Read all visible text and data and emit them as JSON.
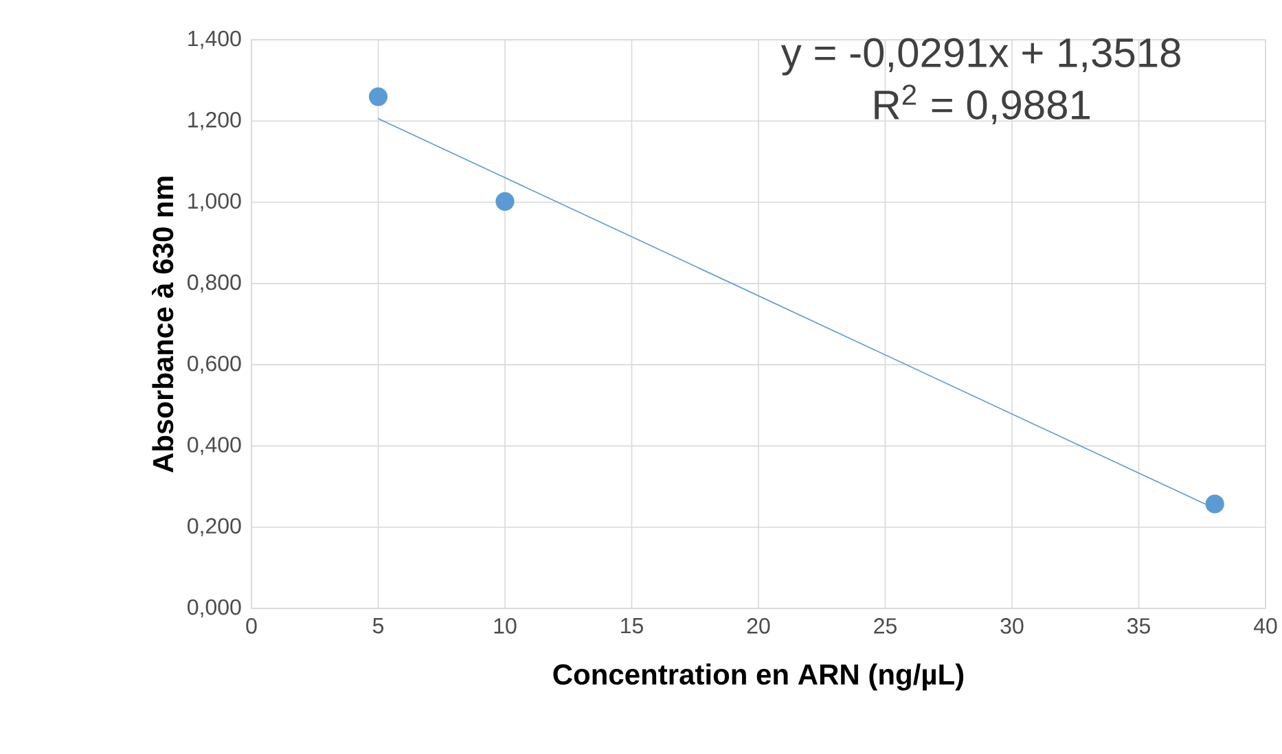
{
  "chart_data": {
    "type": "scatter",
    "xlabel": "Concentration en ARN (ng/µL)",
    "ylabel": "Absorbance à 630 nm",
    "annotations": [
      "y = -0,0291x + 1,3518",
      "R$^{2}$ = 0,9881"
    ],
    "series": [
      {
        "color": "#5b9bd5",
        "marker": "circle",
        "x": [
          5,
          10,
          38
        ],
        "values": [
          1.26,
          1.002,
          0.257
        ]
      },
      {
        "type": "line",
        "color": "#5b9bd5",
        "marker": "none",
        "line_style": "solid",
        "x": [
          5,
          38
        ],
        "values": [
          1.206,
          0.246
        ]
      }
    ],
    "xlim": [
      0,
      40
    ],
    "xticks": [
      0,
      5,
      10,
      15,
      20,
      25,
      30,
      35,
      40
    ],
    "ylim": [
      0,
      1.4
    ],
    "yticks": [
      {
        "value": 0,
        "label": "0,000"
      },
      {
        "value": 0.2,
        "label": "0,200"
      },
      {
        "value": 0.4,
        "label": "0,400"
      },
      {
        "value": 0.6,
        "label": "0,600"
      },
      {
        "value": 0.8,
        "label": "0,800"
      },
      {
        "value": 1.0,
        "label": "1,000"
      },
      {
        "value": 1.2,
        "label": "1,200"
      },
      {
        "value": 1.4,
        "label": "1,400"
      }
    ],
    "grid": true
  }
}
